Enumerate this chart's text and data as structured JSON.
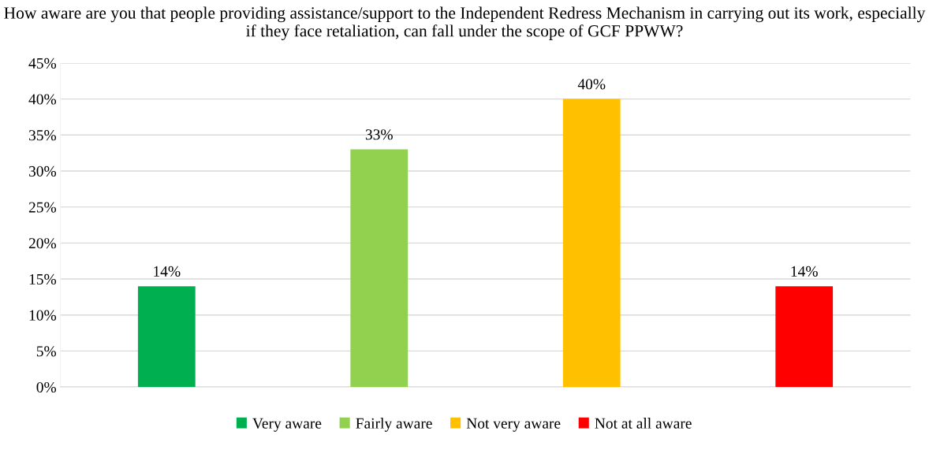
{
  "chart_data": {
    "type": "bar",
    "title": "How aware are you that people providing assistance/support to the Independent Redress Mechanism in carrying out its work, especially if they face retaliation, can fall under the scope of GCF PPWW?",
    "categories": [
      null,
      null,
      null,
      null
    ],
    "series": [
      {
        "name": "Very aware",
        "color": "#00b050",
        "values": [
          14,
          null,
          null,
          null
        ],
        "value_labels": [
          "14%",
          null,
          null,
          null
        ]
      },
      {
        "name": "Fairly aware",
        "color": "#92d050",
        "values": [
          null,
          33,
          null,
          null
        ],
        "value_labels": [
          null,
          "33%",
          null,
          null
        ]
      },
      {
        "name": "Not very aware",
        "color": "#ffc000",
        "values": [
          null,
          null,
          40,
          null
        ],
        "value_labels": [
          null,
          null,
          "40%",
          null
        ]
      },
      {
        "name": "Not at all aware",
        "color": "#ff0000",
        "values": [
          null,
          null,
          null,
          14
        ],
        "value_labels": [
          null,
          null,
          null,
          "14%"
        ]
      }
    ],
    "ylim": [
      0,
      45
    ],
    "yticks": [
      {
        "value": 0,
        "label": "0%"
      },
      {
        "value": 5,
        "label": "5%"
      },
      {
        "value": 10,
        "label": "10%"
      },
      {
        "value": 15,
        "label": "15%"
      },
      {
        "value": 20,
        "label": "20%"
      },
      {
        "value": 25,
        "label": "25%"
      },
      {
        "value": 30,
        "label": "30%"
      },
      {
        "value": 35,
        "label": "35%"
      },
      {
        "value": 40,
        "label": "40%"
      },
      {
        "value": 45,
        "label": "45%"
      }
    ],
    "grid": "y",
    "legend": "bottom"
  }
}
